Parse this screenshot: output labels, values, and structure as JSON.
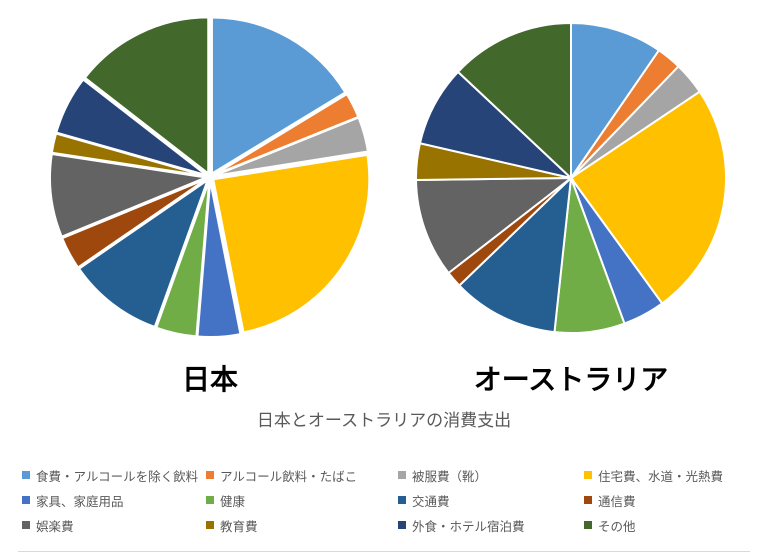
{
  "chart_data": {
    "type": "pie",
    "title": "日本とオーストラリアの消費支出",
    "categories": [
      "食費・アルコールを除く飲料",
      "アルコール飲料・たばこ",
      "被服費（靴）",
      "住宅費、水道・光熱費",
      "家具、家庭用品",
      "健康",
      "交通費",
      "通信費",
      "娯楽費",
      "教育費",
      "外食・ホテル宿泊費",
      "その他"
    ],
    "colors": [
      "#5B9BD5",
      "#ED7D31",
      "#A5A5A5",
      "#FFC000",
      "#4472C4",
      "#70AD47",
      "#255E91",
      "#9E480E",
      "#636363",
      "#997300",
      "#264478",
      "#43682B"
    ],
    "series": [
      {
        "name": "日本",
        "values": [
          16.3,
          2.6,
          3.6,
          24.4,
          4.4,
          4.2,
          9.9,
          3.4,
          8.6,
          2.0,
          6.1,
          14.5
        ]
      },
      {
        "name": "オーストラリア",
        "values": [
          9.6,
          2.6,
          3.4,
          24.4,
          4.4,
          7.3,
          11.1,
          1.7,
          10.3,
          3.8,
          8.4,
          13.0
        ]
      }
    ],
    "legend_position": "bottom"
  }
}
